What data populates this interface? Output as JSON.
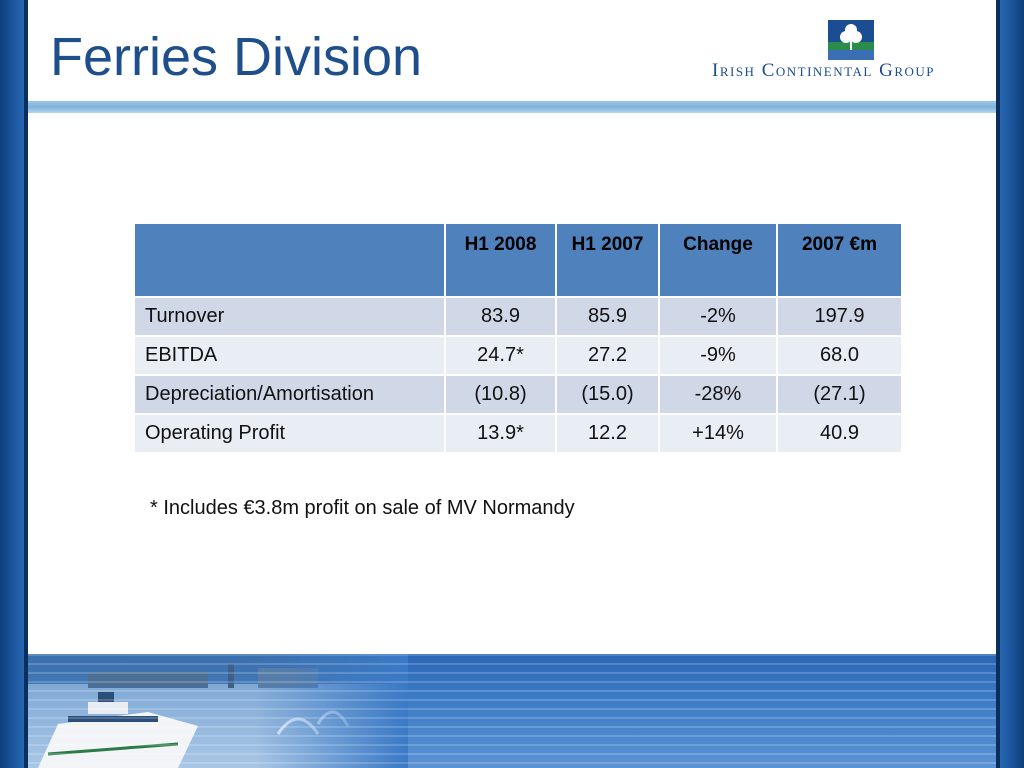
{
  "slide": {
    "title": "Ferries Division",
    "logo_text": "Irish Continental Group"
  },
  "table": {
    "headers": [
      "",
      "H1 2008",
      "H1 2007",
      "Change",
      "2007 €m"
    ],
    "rows": [
      [
        "Turnover",
        "83.9",
        "85.9",
        "-2%",
        "197.9"
      ],
      [
        "EBITDA",
        "24.7*",
        "27.2",
        "-9%",
        "68.0"
      ],
      [
        "Depreciation/Amortisation",
        "(10.8)",
        "(15.0)",
        "-28%",
        "(27.1)"
      ],
      [
        "Operating Profit",
        "13.9*",
        "12.2",
        "+14%",
        "40.9"
      ]
    ]
  },
  "footnote": "* Includes €3.8m profit on sale of MV Normandy",
  "colors": {
    "title": "#1f4e8c",
    "header_fill": "#4f81bd",
    "row_fill": "#d0d8e8",
    "row_alt_fill": "#e9edf4",
    "frame": "#1d5aa3"
  }
}
